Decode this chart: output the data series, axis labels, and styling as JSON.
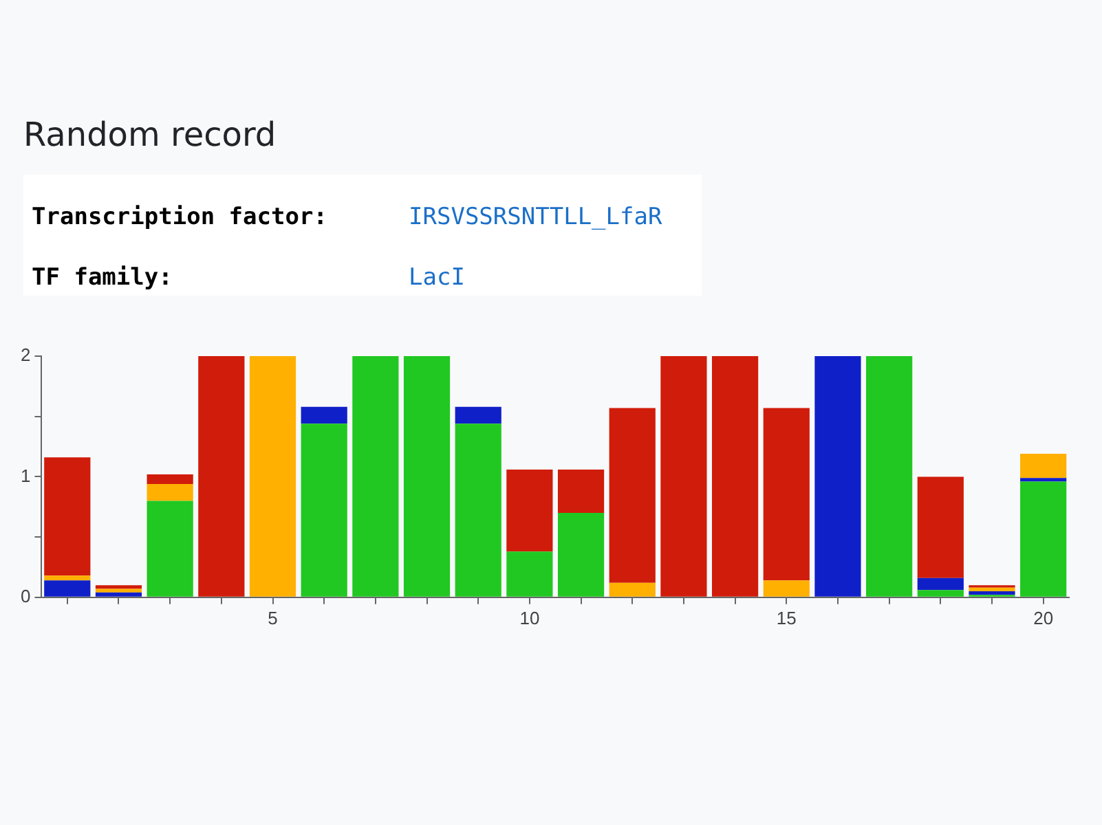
{
  "chart_data": {
    "type": "bar",
    "stacked": true,
    "title": "Random record",
    "annotations": [
      "Transcription factor:",
      "IRSVSSRSNTTLL_LfaR",
      "TF family:",
      "LacI"
    ],
    "x": [
      1,
      2,
      3,
      4,
      5,
      6,
      7,
      8,
      9,
      10,
      11,
      12,
      13,
      14,
      15,
      16,
      17,
      18,
      19,
      20
    ],
    "series": [
      {
        "color": "#21c821",
        "values": [
          0,
          0,
          0.8,
          0,
          0,
          1.44,
          2,
          2,
          1.44,
          0.38,
          0.7,
          0,
          0,
          0,
          0,
          0,
          2,
          0.06,
          0.02,
          0.96
        ]
      },
      {
        "color": "#1020c8",
        "values": [
          0.14,
          0.04,
          0,
          0,
          0,
          0.14,
          0,
          0,
          0.14,
          0,
          0,
          0,
          0,
          0,
          0,
          2,
          0,
          0.1,
          0.03,
          0.03
        ]
      },
      {
        "color": "#ffb000",
        "values": [
          0.04,
          0.03,
          0.14,
          0,
          2,
          0,
          0,
          0,
          0,
          0,
          0,
          0.12,
          0,
          0,
          0.14,
          0,
          0,
          0,
          0.03,
          0.2
        ]
      },
      {
        "color": "#d01c0a",
        "values": [
          0.98,
          0.03,
          0.08,
          2,
          0,
          0,
          0,
          0,
          0,
          0.68,
          0.36,
          1.45,
          2,
          2,
          1.43,
          0,
          0,
          0.84,
          0.02,
          0
        ]
      }
    ],
    "xlim": [
      0.5,
      20.5
    ],
    "xticks": [
      {
        "value": 1,
        "label": null
      },
      {
        "value": 2,
        "label": null
      },
      {
        "value": 3,
        "label": null
      },
      {
        "value": 4,
        "label": null
      },
      5,
      {
        "value": 6,
        "label": null
      },
      {
        "value": 7,
        "label": null
      },
      {
        "value": 8,
        "label": null
      },
      {
        "value": 9,
        "label": null
      },
      10,
      {
        "value": 11,
        "label": null
      },
      {
        "value": 12,
        "label": null
      },
      {
        "value": 13,
        "label": null
      },
      {
        "value": 14,
        "label": null
      },
      15,
      {
        "value": 16,
        "label": null
      },
      {
        "value": 17,
        "label": null
      },
      {
        "value": 18,
        "label": null
      },
      {
        "value": 19,
        "label": null
      },
      20
    ],
    "ylim": [
      0,
      2
    ],
    "yticks": [
      0,
      {
        "value": 0.5,
        "label": null
      },
      1,
      {
        "value": 1.5,
        "label": null
      },
      2
    ],
    "grid": false,
    "legend": false
  }
}
